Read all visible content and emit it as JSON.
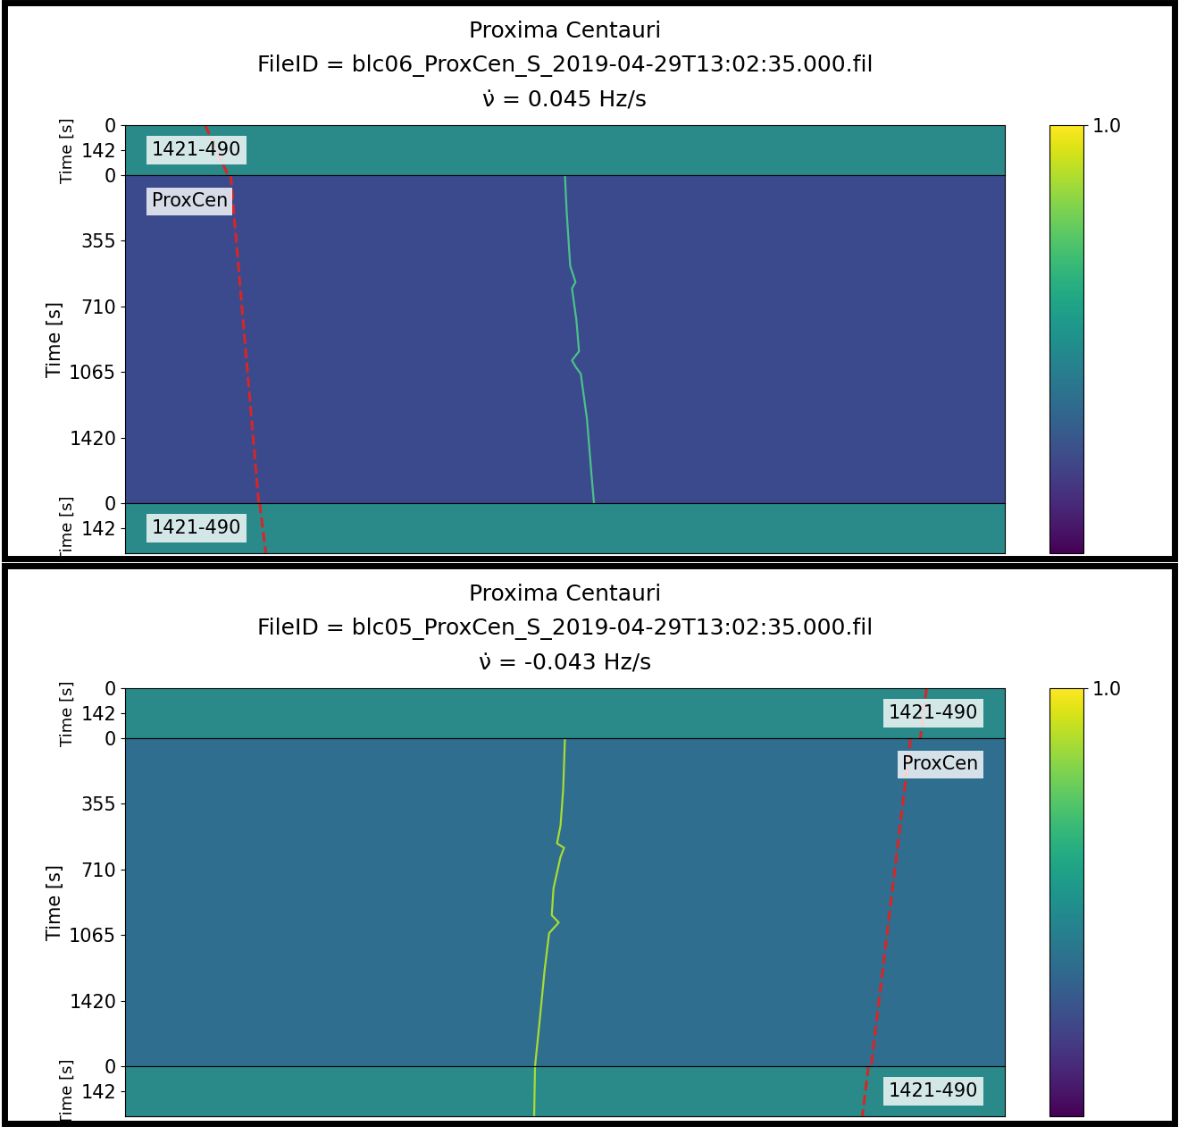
{
  "chart_data": [
    {
      "type": "waterfall",
      "title": "Proxima Centauri",
      "subtitle": "FileID = blc06_ProxCen_S_2019-04-29T13:02:35.000.fil",
      "drift_label": "ν̇ = 0.045 Hz/s",
      "tick_labels": "y",
      "xlim": [
        0,
        1
      ],
      "colorbar": {
        "range": [
          0.75,
          1.0
        ],
        "ticks": [
          1.0
        ]
      },
      "panels": [
        {
          "label": "1421-490",
          "ylabel": "Time [s]",
          "ylim": [
            0,
            284
          ],
          "yticks": [
            0,
            142
          ],
          "color": "#2a8a8a",
          "series": [
            {
              "type": "line",
              "line_style": "dashed",
              "color": "#d62728",
              "x": [
                0.091,
                0.117
              ],
              "y": [
                0,
                284
              ]
            }
          ]
        },
        {
          "label": "ProxCen",
          "ylabel": "Time [s]",
          "ylim": [
            0,
            1775
          ],
          "yticks": [
            0,
            355,
            710,
            1065,
            1420
          ],
          "color": "#3a4a8c",
          "series": [
            {
              "type": "line",
              "line_style": "dashed",
              "color": "#d62728",
              "x": [
                0.12,
                0.152
              ],
              "y": [
                0,
                1775
              ]
            },
            {
              "type": "line",
              "line_style": "solid",
              "color": "#4cc08a",
              "x": [
                0.5,
                0.502,
                0.506,
                0.512,
                0.508,
                0.513,
                0.516,
                0.508,
                0.512,
                0.518,
                0.525,
                0.53,
                0.533
              ],
              "y": [
                0,
                199,
                491,
                579,
                613,
                783,
                953,
                1002,
                1036,
                1075,
                1318,
                1610,
                1775
              ]
            }
          ]
        },
        {
          "label": "1421-490",
          "ylabel": "Time [s]",
          "ylim": [
            0,
            284
          ],
          "yticks": [
            0,
            142
          ],
          "color": "#2a8a8a",
          "series": [
            {
              "type": "line",
              "line_style": "dashed",
              "color": "#d62728",
              "x": [
                0.153,
                0.16
              ],
              "y": [
                0,
                284
              ]
            }
          ]
        }
      ]
    },
    {
      "type": "waterfall",
      "title": "Proxima Centauri",
      "subtitle": "FileID = blc05_ProxCen_S_2019-04-29T13:02:35.000.fil",
      "drift_label": "ν̇ = -0.043 Hz/s",
      "tick_labels": "y",
      "xlim": [
        0,
        1
      ],
      "colorbar": {
        "range": [
          0.75,
          1.0
        ],
        "ticks": [
          1.0
        ]
      },
      "panels": [
        {
          "label": "1421-490",
          "ylabel": "Time [s]",
          "ylim": [
            0,
            284
          ],
          "yticks": [
            0,
            142
          ],
          "color": "#2a8a8a",
          "series": [
            {
              "type": "line",
              "line_style": "dashed",
              "color": "#d62728",
              "x": [
                0.911,
                0.904
              ],
              "y": [
                0,
                284
              ]
            }
          ]
        },
        {
          "label": "ProxCen",
          "ylabel": "Time [s]",
          "ylim": [
            0,
            1775
          ],
          "yticks": [
            0,
            355,
            710,
            1065,
            1420
          ],
          "color": "#2f6e8e",
          "series": [
            {
              "type": "line",
              "line_style": "dashed",
              "color": "#d62728",
              "x": [
                0.893,
                0.848
              ],
              "y": [
                0,
                1775
              ]
            },
            {
              "type": "line",
              "line_style": "solid",
              "color": "#a8db34",
              "x": [
                0.5,
                0.498,
                0.495,
                0.491,
                0.499,
                0.495,
                0.487,
                0.485,
                0.493,
                0.482,
                0.477,
                0.471,
                0.466
              ],
              "y": [
                0,
                277,
                472,
                569,
                593,
                642,
                812,
                958,
                997,
                1055,
                1250,
                1542,
                1775
              ]
            }
          ]
        },
        {
          "label": "1421-490",
          "ylabel": "Time [s]",
          "ylim": [
            0,
            284
          ],
          "yticks": [
            0,
            142
          ],
          "color": "#2a8a8a",
          "series": [
            {
              "type": "line",
              "line_style": "dashed",
              "color": "#d62728",
              "x": [
                0.845,
                0.838
              ],
              "y": [
                0,
                284
              ]
            },
            {
              "type": "line",
              "line_style": "solid",
              "color": "#a8db34",
              "x": [
                0.466,
                0.465
              ],
              "y": [
                0,
                284
              ]
            }
          ]
        }
      ]
    }
  ]
}
